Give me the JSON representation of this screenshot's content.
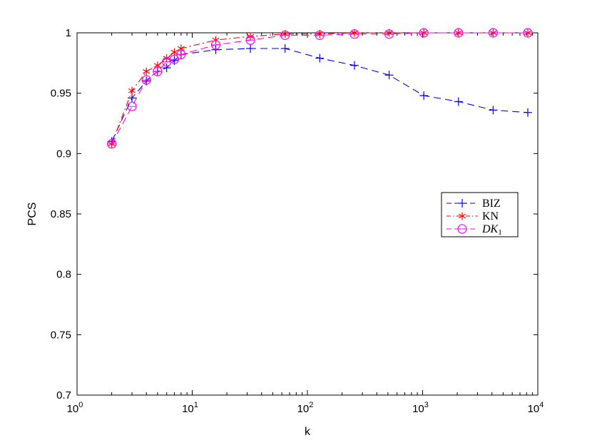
{
  "chart_data": {
    "type": "line",
    "xlabel": "k",
    "ylabel": "PCS",
    "xscale": "log",
    "xlim": [
      1,
      10000
    ],
    "ylim": [
      0.7,
      1.0
    ],
    "x_ticks": [
      {
        "value": 1,
        "base": "10",
        "exp": "0"
      },
      {
        "value": 10,
        "base": "10",
        "exp": "1"
      },
      {
        "value": 100,
        "base": "10",
        "exp": "2"
      },
      {
        "value": 1000,
        "base": "10",
        "exp": "3"
      },
      {
        "value": 10000,
        "base": "10",
        "exp": "4"
      }
    ],
    "y_ticks": [
      {
        "value": 0.7,
        "label": "0.7"
      },
      {
        "value": 0.75,
        "label": "0.75"
      },
      {
        "value": 0.8,
        "label": "0.8"
      },
      {
        "value": 0.85,
        "label": "0.85"
      },
      {
        "value": 0.9,
        "label": "0.9"
      },
      {
        "value": 0.95,
        "label": "0.95"
      },
      {
        "value": 1.0,
        "label": "1"
      }
    ],
    "grid": false,
    "legend": "center-right",
    "series": [
      {
        "name": "BIZ",
        "color": "#0000ff",
        "marker": "plus",
        "dash": "10,6",
        "x": [
          2,
          3,
          4,
          5,
          6,
          7,
          8,
          16,
          32,
          64,
          128,
          256,
          512,
          1024,
          2048,
          4096,
          8192
        ],
        "y": [
          0.91,
          0.946,
          0.96,
          0.968,
          0.971,
          0.977,
          0.982,
          0.986,
          0.987,
          0.987,
          0.979,
          0.973,
          0.965,
          0.948,
          0.943,
          0.936,
          0.934
        ]
      },
      {
        "name": "KN",
        "color": "#ff0000",
        "marker": "asterisk",
        "dash": "9,4,2,4",
        "x": [
          2,
          3,
          4,
          5,
          6,
          7,
          8,
          16,
          32,
          64,
          128,
          256,
          512,
          1024,
          2048,
          4096,
          8192
        ],
        "y": [
          0.908,
          0.952,
          0.968,
          0.973,
          0.979,
          0.984,
          0.987,
          0.994,
          0.997,
          0.999,
          0.999,
          1.0,
          1.0,
          1.0,
          1.0,
          1.0,
          1.0
        ]
      },
      {
        "name": "DK1",
        "color": "#ff00ff",
        "marker": "circle",
        "dash": "10,6",
        "x": [
          2,
          3,
          4,
          5,
          6,
          7,
          8,
          16,
          32,
          64,
          128,
          256,
          512,
          1024,
          2048,
          4096,
          8192
        ],
        "y": [
          0.908,
          0.939,
          0.961,
          0.968,
          0.976,
          0.978,
          0.982,
          0.99,
          0.994,
          0.998,
          0.998,
          0.999,
          0.999,
          1.0,
          1.0,
          1.0,
          1.0
        ]
      }
    ]
  }
}
